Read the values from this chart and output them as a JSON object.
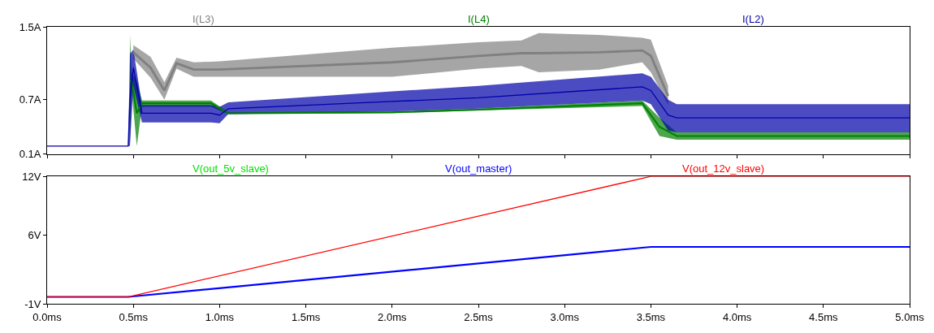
{
  "chart_data": [
    {
      "type": "line",
      "xlim": [
        0,
        5
      ],
      "ylim": [
        0.1,
        1.5
      ],
      "yticks": [
        {
          "value": 0.1,
          "label": "0.1A"
        },
        {
          "value": 0.7,
          "label": "0.7A"
        },
        {
          "value": 1.5,
          "label": "1.5A"
        }
      ],
      "xticks": [
        0,
        0.5,
        1,
        1.5,
        2,
        2.5,
        3,
        3.5,
        4,
        4.5,
        5
      ],
      "tick_labels": "y",
      "legend": "top",
      "series": [
        {
          "name": "I(L3)",
          "color": "#808080",
          "x": [
            0.5,
            0.6,
            0.68,
            0.75,
            0.85,
            1.0,
            2.0,
            2.5,
            2.75,
            2.85,
            3.2,
            3.45,
            3.5,
            3.6
          ],
          "values": [
            1.22,
            1.05,
            0.8,
            1.1,
            1.03,
            1.03,
            1.11,
            1.18,
            1.21,
            1.21,
            1.22,
            1.24,
            1.18,
            0.74
          ],
          "lower": [
            1.15,
            0.94,
            0.7,
            1.04,
            0.95,
            0.95,
            0.95,
            1.04,
            1.07,
            1.0,
            1.03,
            1.11,
            1.0,
            0.64
          ],
          "upper": [
            1.3,
            1.17,
            0.89,
            1.16,
            1.11,
            1.12,
            1.27,
            1.33,
            1.35,
            1.43,
            1.41,
            1.38,
            1.36,
            0.85
          ]
        },
        {
          "name": "I(L4)",
          "color": "#008000",
          "x": [
            0.48,
            0.49,
            0.52,
            0.55,
            0.95,
            1.05,
            2.0,
            2.5,
            3.45,
            3.55,
            3.65,
            4.0,
            5.0
          ],
          "values": [
            0.9,
            0.9,
            0.55,
            0.66,
            0.66,
            0.55,
            0.56,
            0.59,
            0.66,
            0.4,
            0.3,
            0.3,
            0.3
          ],
          "lower": [
            0.19,
            0.8,
            0.19,
            0.62,
            0.62,
            0.54,
            0.55,
            0.58,
            0.63,
            0.3,
            0.26,
            0.26,
            0.26
          ],
          "upper": [
            1.42,
            1.0,
            0.9,
            0.69,
            0.69,
            0.56,
            0.57,
            0.6,
            0.69,
            0.5,
            0.34,
            0.34,
            0.34
          ]
        },
        {
          "name": "I(L2)",
          "color": "#0000a8",
          "x": [
            0,
            0.47,
            0.48,
            0.5,
            0.55,
            0.95,
            1.0,
            1.05,
            2.0,
            2.5,
            3.45,
            3.5,
            3.6,
            3.65,
            4.0,
            5.0
          ],
          "values": [
            0.19,
            0.19,
            0.7,
            1.05,
            0.55,
            0.55,
            0.53,
            0.6,
            0.68,
            0.72,
            0.84,
            0.8,
            0.53,
            0.5,
            0.5,
            0.5
          ],
          "lower": [
            0.19,
            0.19,
            0.19,
            0.85,
            0.45,
            0.45,
            0.44,
            0.54,
            0.57,
            0.6,
            0.69,
            0.65,
            0.36,
            0.34,
            0.34,
            0.34
          ],
          "upper": [
            0.19,
            0.19,
            1.2,
            1.25,
            0.64,
            0.64,
            0.62,
            0.67,
            0.79,
            0.85,
            0.99,
            0.95,
            0.7,
            0.65,
            0.65,
            0.65
          ]
        }
      ]
    },
    {
      "type": "line",
      "xlim": [
        0,
        5
      ],
      "ylim": [
        -1,
        12
      ],
      "yticks": [
        {
          "value": -1,
          "label": "-1V"
        },
        {
          "value": 6,
          "label": "6V"
        },
        {
          "value": 12,
          "label": "12V"
        }
      ],
      "xticks": [
        {
          "value": 0,
          "label": "0.0ms"
        },
        {
          "value": 0.5,
          "label": "0.5ms"
        },
        {
          "value": 1,
          "label": "1.0ms"
        },
        {
          "value": 1.5,
          "label": "1.5ms"
        },
        {
          "value": 2,
          "label": "2.0ms"
        },
        {
          "value": 2.5,
          "label": "2.5ms"
        },
        {
          "value": 3,
          "label": "3.0ms"
        },
        {
          "value": 3.5,
          "label": "3.5ms"
        },
        {
          "value": 4,
          "label": "4.0ms"
        },
        {
          "value": 4.5,
          "label": "4.5ms"
        },
        {
          "value": 5,
          "label": "5.0ms"
        }
      ],
      "legend": "top",
      "series": [
        {
          "name": "V(out_5v_slave)",
          "color": "#00e000"
        },
        {
          "name": "V(out_master)",
          "color": "#0000ff",
          "x": [
            0,
            0.47,
            3.5,
            5.0
          ],
          "values": [
            -0.3,
            -0.3,
            4.8,
            4.8
          ]
        },
        {
          "name": "V(out_12v_slave)",
          "color": "#ff0000",
          "x": [
            0,
            0.47,
            3.5,
            5.0
          ],
          "values": [
            -0.3,
            -0.3,
            12,
            12
          ]
        }
      ]
    }
  ]
}
